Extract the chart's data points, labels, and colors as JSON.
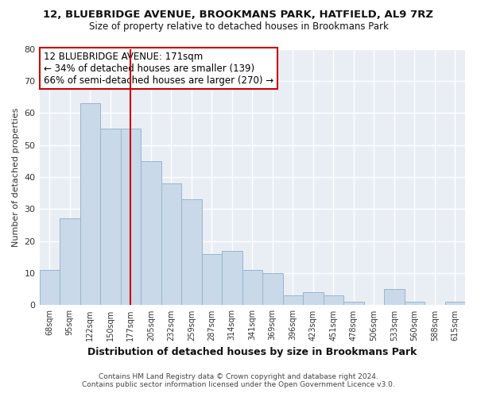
{
  "title1": "12, BLUEBRIDGE AVENUE, BROOKMANS PARK, HATFIELD, AL9 7RZ",
  "title2": "Size of property relative to detached houses in Brookmans Park",
  "xlabel": "Distribution of detached houses by size in Brookmans Park",
  "ylabel": "Number of detached properties",
  "bar_labels": [
    "68sqm",
    "95sqm",
    "122sqm",
    "150sqm",
    "177sqm",
    "205sqm",
    "232sqm",
    "259sqm",
    "287sqm",
    "314sqm",
    "341sqm",
    "369sqm",
    "396sqm",
    "423sqm",
    "451sqm",
    "478sqm",
    "506sqm",
    "533sqm",
    "560sqm",
    "588sqm",
    "615sqm"
  ],
  "bar_values": [
    11,
    27,
    63,
    55,
    55,
    45,
    38,
    33,
    16,
    17,
    11,
    10,
    3,
    4,
    3,
    1,
    0,
    5,
    1,
    0,
    1
  ],
  "bar_color": "#c9d9ea",
  "bar_edge_color": "#9ab4cc",
  "vline_x_index": 4,
  "vline_color": "#cc0000",
  "annotation_title": "12 BLUEBRIDGE AVENUE: 171sqm",
  "annotation_line1": "← 34% of detached houses are smaller (139)",
  "annotation_line2": "66% of semi-detached houses are larger (270) →",
  "annotation_box_facecolor": "#ffffff",
  "annotation_box_edgecolor": "#cc0000",
  "ylim": [
    0,
    80
  ],
  "yticks": [
    0,
    10,
    20,
    30,
    40,
    50,
    60,
    70,
    80
  ],
  "footnote1": "Contains HM Land Registry data © Crown copyright and database right 2024.",
  "footnote2": "Contains public sector information licensed under the Open Government Licence v3.0.",
  "fig_bg_color": "#ffffff",
  "axes_bg_color": "#e8eef4",
  "grid_color": "#ffffff",
  "title1_fontsize": 9.5,
  "title2_fontsize": 8.5
}
